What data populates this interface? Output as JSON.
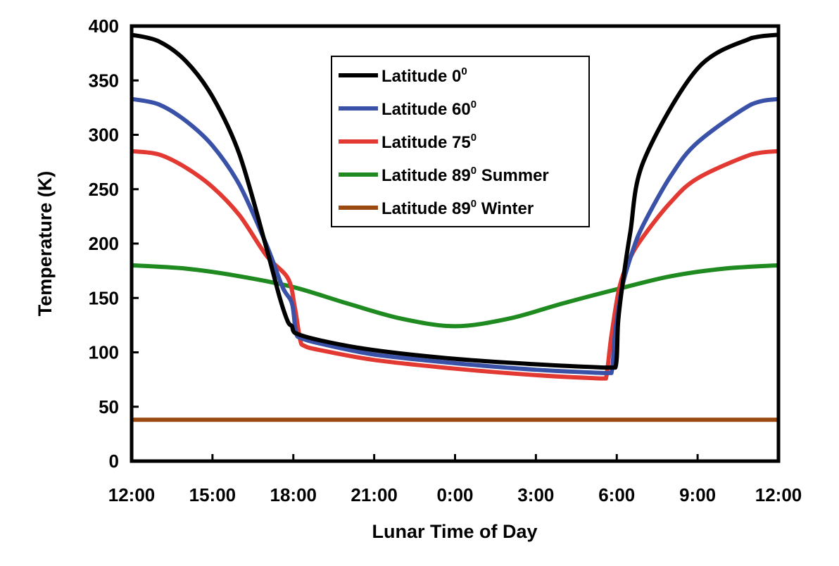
{
  "chart_data": {
    "type": "line",
    "title": "",
    "xlabel": "Lunar Time of Day",
    "ylabel": "Temperature (K)",
    "ylim": [
      0,
      400
    ],
    "yticks": [
      0,
      50,
      100,
      150,
      200,
      250,
      300,
      350,
      400
    ],
    "xlim": [
      0,
      24
    ],
    "xtick_labels": [
      "12:00",
      "15:00",
      "18:00",
      "21:00",
      "0:00",
      "3:00",
      "6:00",
      "9:00",
      "12:00"
    ],
    "x_unit": "hours after local noon",
    "grid": false,
    "legend_position": "top-center",
    "series": [
      {
        "name": "Latitude 0",
        "name_superscript": "0",
        "name_suffix": "",
        "color": "#000000",
        "x": [
          0,
          1,
          2,
          3,
          4,
          5,
          5.5,
          5.8,
          5.95,
          6.05,
          7,
          9,
          12,
          15,
          17.5,
          17.95,
          18.05,
          18.2,
          18.5,
          19,
          21,
          23,
          23.5,
          24
        ],
        "y": [
          392,
          386,
          368,
          335,
          282,
          196,
          150,
          128,
          124,
          118,
          111,
          102,
          94,
          89,
          86,
          86,
          128,
          160,
          210,
          276,
          361,
          389,
          391,
          392
        ]
      },
      {
        "name": "Latitude 60",
        "name_superscript": "0",
        "name_suffix": "",
        "color": "#3a51a8",
        "x": [
          0,
          1,
          2,
          3,
          4,
          5,
          5.6,
          5.95,
          6.1,
          6.3,
          7,
          9,
          12,
          15,
          17.5,
          17.8,
          17.95,
          18.2,
          18.6,
          19,
          20,
          21,
          23,
          24
        ],
        "y": [
          333,
          328,
          313,
          290,
          254,
          199,
          160,
          145,
          118,
          113,
          108,
          98,
          90,
          84,
          81,
          81,
          120,
          160,
          194,
          218,
          262,
          293,
          328,
          333
        ]
      },
      {
        "name": "Latitude 75",
        "name_superscript": "0",
        "name_suffix": "",
        "color": "#e23a33",
        "x": [
          0,
          1,
          2,
          3,
          4,
          5,
          5.8,
          6.05,
          6.25,
          6.4,
          7,
          9,
          12,
          15,
          17.4,
          17.6,
          17.8,
          18.1,
          18.5,
          19,
          20,
          21,
          23,
          24
        ],
        "y": [
          285,
          282,
          270,
          252,
          226,
          189,
          168,
          142,
          112,
          106,
          102,
          93,
          85,
          79,
          76,
          76,
          115,
          160,
          187,
          207,
          238,
          260,
          282,
          285
        ]
      },
      {
        "name": "Latitude 89",
        "name_superscript": "0",
        "name_suffix": " Summer",
        "color": "#1f8a1f",
        "x": [
          0,
          2,
          4,
          6,
          8,
          10,
          12,
          14,
          16,
          18,
          20,
          22,
          24
        ],
        "y": [
          180,
          177,
          170,
          160,
          145,
          131,
          124,
          131,
          145,
          158,
          170,
          177,
          180
        ]
      },
      {
        "name": "Latitude 89",
        "name_superscript": "0",
        "name_suffix": " Winter",
        "color": "#9a4a10",
        "x": [
          0,
          24
        ],
        "y": [
          38,
          38
        ]
      }
    ]
  }
}
